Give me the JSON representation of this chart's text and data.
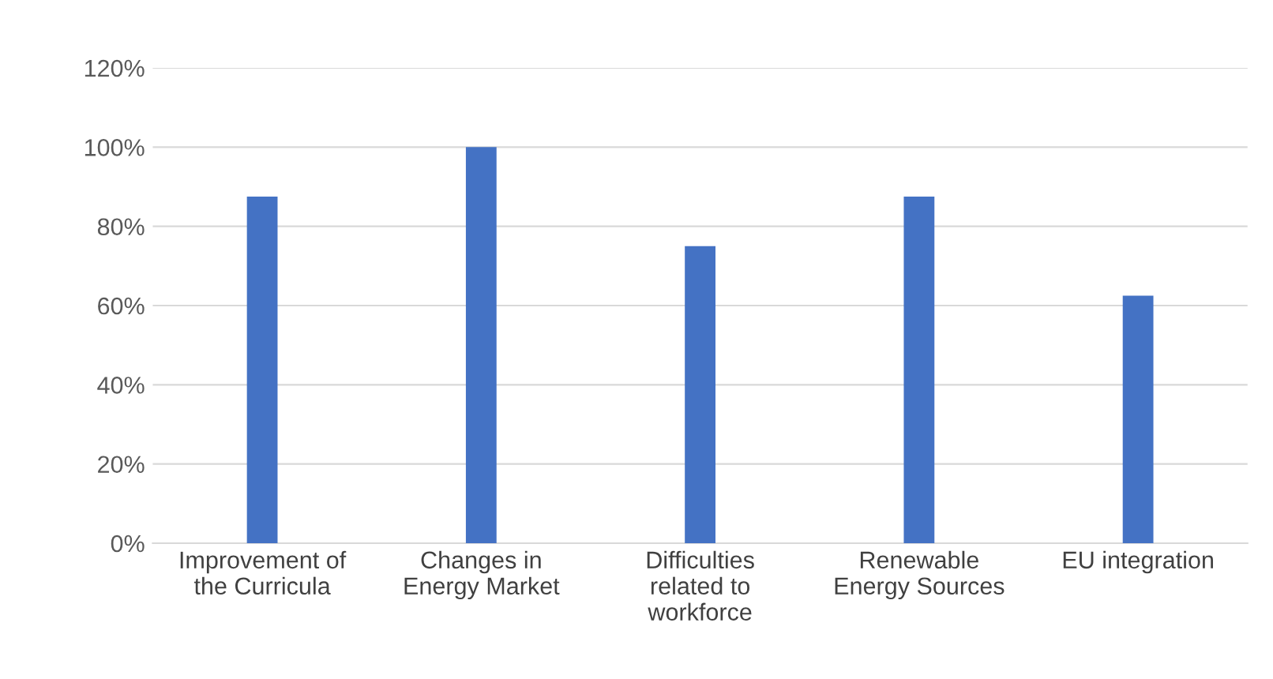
{
  "chart_data": {
    "type": "bar",
    "categories": [
      "Improvement of\nthe Curricula",
      "Changes in\nEnergy Market",
      "Difficulties\nrelated to\nworkforce",
      "Renewable\nEnergy Sources",
      "EU integration"
    ],
    "values": [
      87.5,
      100,
      75,
      87.5,
      62.5
    ],
    "color": "#4472c4",
    "ylim": [
      0,
      120
    ],
    "yticks": [
      {
        "value": 0,
        "label": "0%"
      },
      {
        "value": 20,
        "label": "20%"
      },
      {
        "value": 40,
        "label": "40%"
      },
      {
        "value": 60,
        "label": "60%"
      },
      {
        "value": 80,
        "label": "80%"
      },
      {
        "value": 100,
        "label": "100%"
      },
      {
        "value": 120,
        "label": "120%"
      }
    ],
    "grid": "y"
  }
}
